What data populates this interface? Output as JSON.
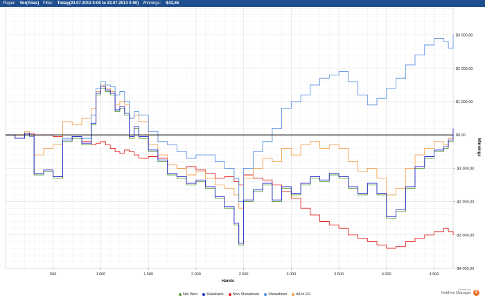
{
  "header": {
    "player_label": "Player:",
    "player_value": "Vor(Alias)",
    "filter_label": "Filter:",
    "filter_value": "Today(23.07.2013 0:00 to 23.07.2013 0:00)",
    "winnings_label": "Winnings:",
    "winnings_value": "-$42,65"
  },
  "branding": {
    "sub": "Powered by",
    "name": "Hold'em Manager",
    "logo_text": "2"
  },
  "chart_data": {
    "type": "line",
    "xlabel": "Hands",
    "ylabel": "Winnings",
    "xlim": [
      0,
      4700
    ],
    "ylim": [
      -4000,
      3800
    ],
    "x_ticks": [
      500,
      1000,
      1500,
      2000,
      2500,
      3000,
      3500,
      4000,
      4500
    ],
    "x_tick_labels": [
      "500",
      "1 000",
      "1 500",
      "2 000",
      "2 500",
      "3 000",
      "3 500",
      "4 000",
      "4 500"
    ],
    "y_ticks": [
      3000,
      2000,
      1000,
      0,
      -1000,
      -2000,
      -3000,
      -4000
    ],
    "y_tick_labels": [
      "$3 000,00",
      "$2 000,00",
      "$1 000,00",
      "$0,00",
      "-$1 000,00",
      "-$2 000,00",
      "-$3 000,00",
      "-$4 000,00"
    ],
    "grid": true,
    "legend_position": "bottom",
    "x": [
      0,
      100,
      200,
      250,
      300,
      400,
      500,
      600,
      700,
      800,
      900,
      950,
      1000,
      1050,
      1100,
      1150,
      1200,
      1250,
      1300,
      1350,
      1400,
      1500,
      1600,
      1700,
      1800,
      1900,
      2000,
      2100,
      2200,
      2300,
      2400,
      2450,
      2500,
      2600,
      2700,
      2800,
      2900,
      3000,
      3100,
      3200,
      3300,
      3400,
      3500,
      3600,
      3700,
      3800,
      3900,
      4000,
      4100,
      4200,
      4300,
      4400,
      4500,
      4600,
      4650,
      4700
    ],
    "series": [
      {
        "name": "Net Won",
        "color": "#5a9a3a",
        "values": [
          0,
          -100,
          50,
          0,
          -1200,
          -1100,
          -1300,
          -200,
          -100,
          -300,
          300,
          1200,
          1400,
          1300,
          1200,
          700,
          800,
          600,
          -100,
          200,
          -100,
          -500,
          -800,
          -1200,
          -1300,
          -1500,
          -1400,
          -1600,
          -1900,
          -2200,
          -2700,
          -3300,
          -2000,
          -1700,
          -1500,
          -2000,
          -1600,
          -1800,
          -1500,
          -1300,
          -1400,
          -1200,
          -1300,
          -1600,
          -1800,
          -1500,
          -1800,
          -2500,
          -2300,
          -1600,
          -1000,
          -700,
          -500,
          -400,
          -200,
          0
        ]
      },
      {
        "name": "Rakeback",
        "color": "#2a2ad0",
        "values": [
          0,
          -100,
          50,
          0,
          -1150,
          -1050,
          -1250,
          -150,
          -50,
          -250,
          350,
          1250,
          1450,
          1350,
          1250,
          750,
          850,
          650,
          -50,
          250,
          -50,
          -450,
          -750,
          -1150,
          -1250,
          -1450,
          -1350,
          -1550,
          -1850,
          -2150,
          -2650,
          -3250,
          -1950,
          -1650,
          -1450,
          -1950,
          -1550,
          -1750,
          -1450,
          -1250,
          -1350,
          -1150,
          -1250,
          -1550,
          -1750,
          -1450,
          -1750,
          -2450,
          -2250,
          -1550,
          -950,
          -650,
          -450,
          -350,
          -150,
          200
        ]
      },
      {
        "name": "Non Showdown",
        "color": "#e02020",
        "values": [
          0,
          0,
          0,
          50,
          0,
          0,
          -50,
          -100,
          -50,
          -200,
          -300,
          -250,
          -200,
          -300,
          -400,
          -500,
          -550,
          -450,
          -500,
          -600,
          -700,
          -650,
          -700,
          -900,
          -1000,
          -950,
          -1050,
          -1150,
          -1300,
          -1250,
          -1400,
          -1500,
          -1200,
          -1300,
          -1350,
          -1500,
          -1700,
          -1900,
          -2200,
          -2400,
          -2600,
          -2700,
          -2800,
          -3000,
          -3100,
          -3200,
          -3300,
          -3400,
          -3350,
          -3200,
          -3100,
          -3000,
          -2900,
          -2800,
          -2900,
          -3000
        ]
      },
      {
        "name": "Showdown",
        "color": "#5b8ee0",
        "values": [
          0,
          -100,
          50,
          -50,
          -1200,
          -1100,
          -1250,
          -100,
          -50,
          -100,
          600,
          1400,
          1600,
          1500,
          1450,
          1200,
          1300,
          1000,
          500,
          700,
          600,
          100,
          -200,
          -300,
          -500,
          -700,
          -600,
          -600,
          -800,
          -1000,
          -1300,
          -2000,
          -1000,
          -500,
          -200,
          200,
          800,
          1000,
          1200,
          1500,
          1700,
          1800,
          1900,
          1600,
          1200,
          900,
          1100,
          1400,
          1700,
          2100,
          2400,
          2700,
          2900,
          2800,
          2600,
          3000
        ]
      },
      {
        "name": "All-in EV",
        "color": "#f0a050",
        "values": [
          0,
          0,
          100,
          0,
          -600,
          -400,
          -300,
          400,
          300,
          500,
          800,
          1300,
          1500,
          1400,
          1300,
          900,
          1000,
          900,
          500,
          600,
          400,
          -300,
          -600,
          -900,
          -1000,
          -1200,
          -1100,
          -1300,
          -1500,
          -1600,
          -1800,
          -2200,
          -1300,
          -1000,
          -700,
          -800,
          -400,
          -600,
          -300,
          -200,
          -400,
          -300,
          -400,
          -800,
          -1100,
          -1000,
          -1300,
          -1800,
          -1600,
          -1000,
          -600,
          -400,
          -200,
          -300,
          -100,
          100
        ]
      }
    ]
  }
}
